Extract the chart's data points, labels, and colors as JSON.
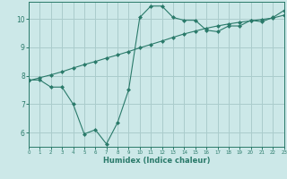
{
  "title": "",
  "xlabel": "Humidex (Indice chaleur)",
  "background_color": "#cce8e8",
  "grid_color": "#aacccc",
  "line_color": "#2a7a6a",
  "x_min": 0,
  "x_max": 23,
  "y_min": 5.5,
  "y_max": 10.6,
  "curve1_x": [
    0,
    1,
    2,
    3,
    4,
    5,
    6,
    7,
    8,
    9,
    10,
    11,
    12,
    13,
    14,
    15,
    16,
    17,
    18,
    19,
    20,
    21,
    22,
    23
  ],
  "curve1_y": [
    7.85,
    7.85,
    7.6,
    7.6,
    7.0,
    5.95,
    6.1,
    5.6,
    6.35,
    7.5,
    10.05,
    10.45,
    10.45,
    10.05,
    9.95,
    9.95,
    9.6,
    9.55,
    9.75,
    9.75,
    9.95,
    9.9,
    10.05,
    10.3
  ],
  "curve2_x": [
    0,
    1,
    2,
    3,
    4,
    5,
    6,
    7,
    8,
    9,
    10,
    11,
    12,
    13,
    14,
    15,
    16,
    17,
    18,
    19,
    20,
    21,
    22,
    23
  ],
  "curve2_y": [
    7.82,
    7.93,
    8.03,
    8.14,
    8.27,
    8.39,
    8.5,
    8.62,
    8.73,
    8.85,
    8.98,
    9.1,
    9.22,
    9.35,
    9.47,
    9.57,
    9.67,
    9.75,
    9.82,
    9.88,
    9.93,
    9.98,
    10.03,
    10.13
  ]
}
